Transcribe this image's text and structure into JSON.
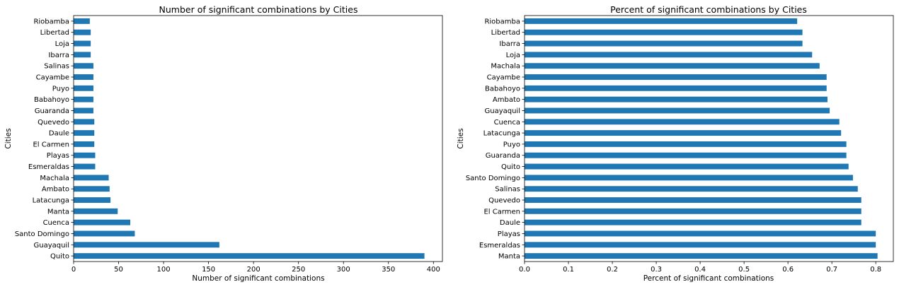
{
  "chart_data": [
    {
      "type": "bar",
      "orientation": "horizontal",
      "title": "Number of significant combinations by Cities",
      "xlabel": "Number of significant combinations",
      "ylabel": "Cities",
      "xlim": [
        0,
        410
      ],
      "xticks": [
        "0",
        "50",
        "100",
        "150",
        "200",
        "250",
        "300",
        "350",
        "400"
      ],
      "xtick_values": [
        0,
        50,
        100,
        150,
        200,
        250,
        300,
        350,
        400
      ],
      "bar_color": "#1f77b4",
      "grid": false,
      "categories": [
        "Quito",
        "Guayaquil",
        "Santo Domingo",
        "Cuenca",
        "Manta",
        "Latacunga",
        "Ambato",
        "Machala",
        "Esmeraldas",
        "Playas",
        "El Carmen",
        "Daule",
        "Quevedo",
        "Guaranda",
        "Babahoyo",
        "Puyo",
        "Cayambe",
        "Salinas",
        "Ibarra",
        "Loja",
        "Libertad",
        "Riobamba"
      ],
      "values": [
        390,
        162,
        68,
        63,
        49,
        41,
        40,
        39,
        24,
        24,
        23,
        23,
        23,
        22,
        22,
        22,
        22,
        22,
        19,
        19,
        19,
        18
      ]
    },
    {
      "type": "bar",
      "orientation": "horizontal",
      "title": "Percent of significant combinations by Cities",
      "xlabel": "Percent of significant combinations",
      "ylabel": "Cities",
      "xlim": [
        0,
        0.84
      ],
      "xticks": [
        "0.0",
        "0.1",
        "0.2",
        "0.3",
        "0.4",
        "0.5",
        "0.6",
        "0.7",
        "0.8"
      ],
      "xtick_values": [
        0,
        0.1,
        0.2,
        0.3,
        0.4,
        0.5,
        0.6,
        0.7,
        0.8
      ],
      "bar_color": "#1f77b4",
      "grid": false,
      "categories": [
        "Manta",
        "Esmeraldas",
        "Playas",
        "Daule",
        "El Carmen",
        "Quevedo",
        "Salinas",
        "Santo Domingo",
        "Quito",
        "Guaranda",
        "Puyo",
        "Latacunga",
        "Cuenca",
        "Guayaquil",
        "Ambato",
        "Babahoyo",
        "Cayambe",
        "Machala",
        "Loja",
        "Ibarra",
        "Libertad",
        "Riobamba"
      ],
      "values": [
        0.804,
        0.8,
        0.8,
        0.767,
        0.767,
        0.767,
        0.759,
        0.748,
        0.738,
        0.733,
        0.733,
        0.721,
        0.717,
        0.695,
        0.69,
        0.688,
        0.688,
        0.672,
        0.655,
        0.633,
        0.633,
        0.621
      ]
    }
  ]
}
